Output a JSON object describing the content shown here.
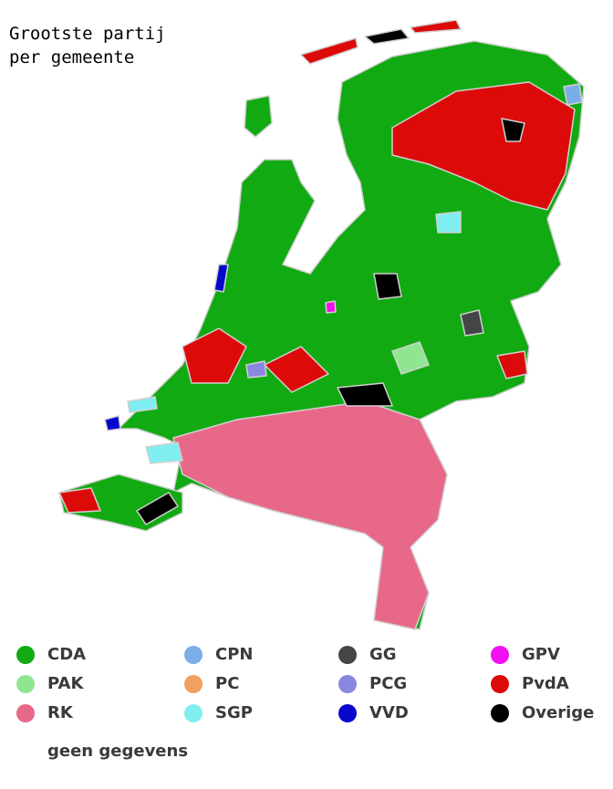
{
  "title": [
    "Grootste partij",
    "per gemeente"
  ],
  "legend": [
    {
      "label": "CDA",
      "color": "#12aa12"
    },
    {
      "label": "PAK",
      "color": "#90e690"
    },
    {
      "label": "RK",
      "color": "#e8688a"
    },
    {
      "label": "CPN",
      "color": "#7aaee8"
    },
    {
      "label": "PC",
      "color": "#f0a060"
    },
    {
      "label": "SGP",
      "color": "#80eef0"
    },
    {
      "label": "GG",
      "color": "#454548"
    },
    {
      "label": "PCG",
      "color": "#8888e0"
    },
    {
      "label": "VVD",
      "color": "#0808cc"
    },
    {
      "label": "GPV",
      "color": "#f010f0"
    },
    {
      "label": "PvdA",
      "color": "#dd0a0a"
    },
    {
      "label": "Overige",
      "color": "#000000"
    }
  ],
  "no_data": "geen gegevens"
}
